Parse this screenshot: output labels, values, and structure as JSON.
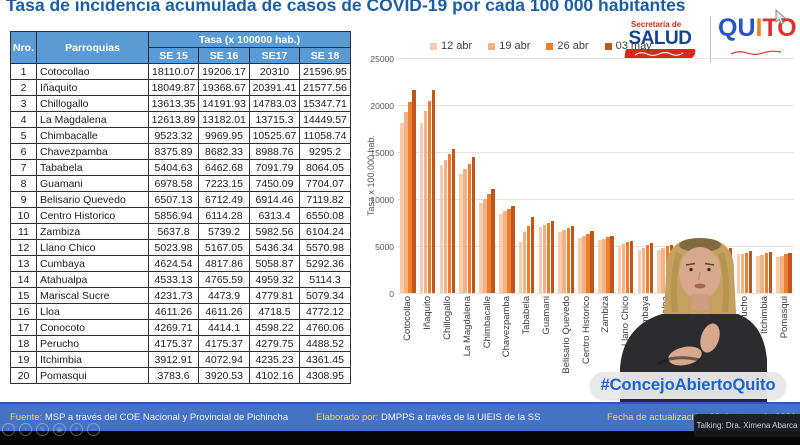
{
  "title": "Tasa de incidencia acumulada de casos de COVID-19 por cada 100 000 habitantes",
  "logos": {
    "salud_top": "Secretaría de",
    "salud_main": "SALUD",
    "quito_qu": "QU",
    "quito_i": "I",
    "quito_to": "TO"
  },
  "colors": {
    "title_blue": "#1b5ea8",
    "table_header_blue": "#5b9bd5",
    "footer_blue": "#4472c4",
    "footer_label_yellow": "#ffd24a",
    "hashtag_blue": "#1c63cc"
  },
  "table": {
    "col_nro": "Nro.",
    "col_parroquias": "Parroquias",
    "col_tasa": "Tasa (x 100000 hab.)",
    "se_headers": [
      "SE 15",
      "SE 16",
      "SE17",
      "SE 18"
    ],
    "rows": [
      [
        "1",
        "Cotocollao",
        "18110.07",
        "19206.17",
        "20310",
        "21596.95"
      ],
      [
        "2",
        "Iñaquito",
        "18049.87",
        "19368.67",
        "20391.41",
        "21577.56"
      ],
      [
        "3",
        "Chillogallo",
        "13613.35",
        "14191.93",
        "14783.03",
        "15347.71"
      ],
      [
        "4",
        "La Magdalena",
        "12613.89",
        "13182.01",
        "13715.3",
        "14449.57"
      ],
      [
        "5",
        "Chimbacalle",
        "9523.32",
        "9969.95",
        "10525.67",
        "11058.74"
      ],
      [
        "6",
        "Chavezpamba",
        "8375.89",
        "8682.33",
        "8988.76",
        "9295.2"
      ],
      [
        "7",
        "Tababela",
        "5404.63",
        "6462.68",
        "7091.79",
        "8064.05"
      ],
      [
        "8",
        "Guamani",
        "6978.58",
        "7223.15",
        "7450.09",
        "7704.07"
      ],
      [
        "9",
        "Belisario Quevedo",
        "6507.13",
        "6712.49",
        "6914.46",
        "7119.82"
      ],
      [
        "10",
        "Centro Historico",
        "5856.94",
        "6114.28",
        "6313.4",
        "6550.08"
      ],
      [
        "11",
        "Zambiza",
        "5637.8",
        "5739.2",
        "5982.56",
        "6104.24"
      ],
      [
        "12",
        "Llano Chico",
        "5023.98",
        "5167.05",
        "5436.34",
        "5570.98"
      ],
      [
        "13",
        "Cumbaya",
        "4624.54",
        "4817.86",
        "5058.87",
        "5292.36"
      ],
      [
        "14",
        "Atahualpa",
        "4533.13",
        "4765.59",
        "4959.32",
        "5114.3"
      ],
      [
        "15",
        "Mariscal Sucre",
        "4231.73",
        "4473.9",
        "4779.81",
        "5079.34"
      ],
      [
        "16",
        "Lloa",
        "4611.26",
        "4611.26",
        "4718.5",
        "4772.12"
      ],
      [
        "17",
        "Conocoto",
        "4269.71",
        "4414.1",
        "4598.22",
        "4760.06"
      ],
      [
        "18",
        "Perucho",
        "4175.37",
        "4175.37",
        "4279.75",
        "4488.52"
      ],
      [
        "19",
        "Itchimbia",
        "3912.91",
        "4072.94",
        "4235.23",
        "4361.45"
      ],
      [
        "20",
        "Pomasqui",
        "3783.6",
        "3920.53",
        "4102.16",
        "4308.95"
      ]
    ]
  },
  "chart_data": {
    "type": "bar",
    "title": "",
    "xlabel": "",
    "ylabel": "Tasa x 100.000 hab.",
    "ylim": [
      0,
      25000
    ],
    "yticks": [
      0,
      5000,
      10000,
      15000,
      20000,
      25000
    ],
    "grid": true,
    "legend_position": "top",
    "categories": [
      "Cotocollao",
      "Iñaquito",
      "Chillogallo",
      "La Magdalena",
      "Chimbacalle",
      "Chavezpamba",
      "Tababela",
      "Guamani",
      "Belisario Quevedo",
      "Centro Historico",
      "Zambiza",
      "Llano Chico",
      "Cumbaya",
      "Atahualpa",
      "Mariscal Sucre",
      "Lloa",
      "Conocoto",
      "Perucho",
      "Itchimbia",
      "Pomasqui"
    ],
    "series": [
      {
        "name": "12 abr",
        "color": "#f8cbad",
        "values": [
          18110.07,
          18049.87,
          13613.35,
          12613.89,
          9523.32,
          8375.89,
          5404.63,
          6978.58,
          6507.13,
          5856.94,
          5637.8,
          5023.98,
          4624.54,
          4533.13,
          4231.73,
          4611.26,
          4269.71,
          4175.37,
          3912.91,
          3783.6
        ]
      },
      {
        "name": "19 abr",
        "color": "#f4b183",
        "values": [
          19206.17,
          19368.67,
          14191.93,
          13182.01,
          9969.95,
          8682.33,
          6462.68,
          7223.15,
          6712.49,
          6114.28,
          5739.2,
          5167.05,
          4817.86,
          4765.59,
          4473.9,
          4611.26,
          4414.1,
          4175.37,
          4072.94,
          3920.53
        ]
      },
      {
        "name": "26 abr",
        "color": "#ed7d31",
        "values": [
          20310,
          20391.41,
          14783.03,
          13715.3,
          10525.67,
          8988.76,
          7091.79,
          7450.09,
          6914.46,
          6313.4,
          5982.56,
          5436.34,
          5058.87,
          4959.32,
          4779.81,
          4718.5,
          4598.22,
          4279.75,
          4235.23,
          4102.16
        ]
      },
      {
        "name": "03 may",
        "color": "#c0561a",
        "values": [
          21596.95,
          21577.56,
          15347.71,
          14449.57,
          11058.74,
          9295.2,
          8064.05,
          7704.07,
          7119.82,
          6550.08,
          6104.24,
          5570.98,
          5292.36,
          5114.3,
          5079.34,
          4772.12,
          4760.06,
          4488.52,
          4361.45,
          4308.95
        ]
      }
    ]
  },
  "overlay": {
    "hashtag": "#ConcejoAbiertoQuito",
    "talking": "Talking: Dra. Ximena Abarca"
  },
  "footer": {
    "fuente_label": "Fuente:",
    "fuente_text": "MSP a través del COE Nacional y Provincial de Pichincha",
    "elaborado_label": "Elaborado por:",
    "elaborado_text": "DMPPS a través de la UIEIS de la SS",
    "fecha_label": "Fecha de actualización:",
    "fecha_text": "03 de mayo de 2021",
    "toolbar_icons": [
      {
        "name": "prev-arrow-icon",
        "glyph": "‹"
      },
      {
        "name": "next-arrow-icon",
        "glyph": "›"
      },
      {
        "name": "pencil-icon",
        "glyph": "✎"
      },
      {
        "name": "id-card-icon",
        "glyph": "▣"
      },
      {
        "name": "magnifier-icon",
        "glyph": "⌕"
      },
      {
        "name": "ellipsis-icon",
        "glyph": "⋯"
      }
    ]
  }
}
